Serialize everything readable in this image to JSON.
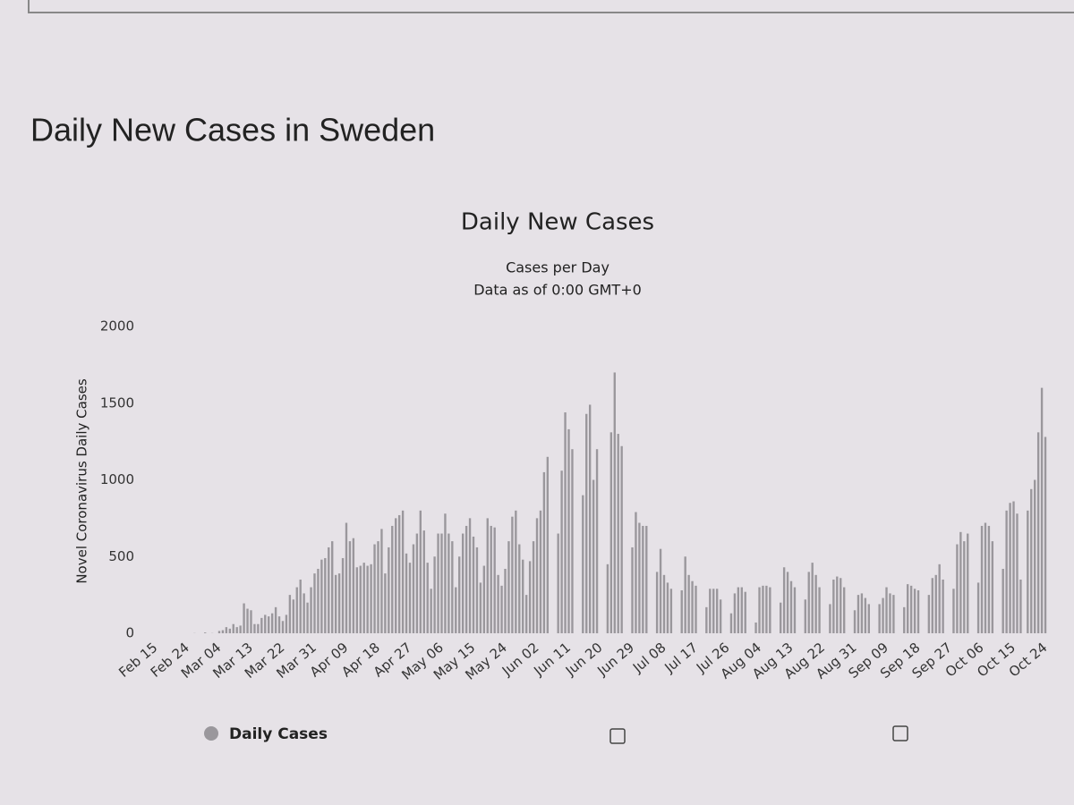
{
  "heading": "Daily New Cases in Sweden",
  "chart_data": {
    "type": "bar",
    "title": "Daily New Cases",
    "subtitle": [
      "Cases per Day",
      "Data as of 0:00 GMT+0"
    ],
    "y_label": "Novel Coronavirus Daily Cases",
    "series": [
      {
        "name": "Daily Cases",
        "color": "#9a979c"
      }
    ],
    "legend": "bottom-left",
    "grid": false,
    "ylim": [
      0,
      2000
    ],
    "yticks": [
      0,
      500,
      1000,
      1500,
      2000
    ],
    "categories": [
      "Feb 15",
      null,
      null,
      null,
      null,
      null,
      null,
      null,
      null,
      "Feb 24",
      null,
      null,
      null,
      null,
      null,
      null,
      null,
      null,
      "Mar 04",
      null,
      null,
      null,
      null,
      null,
      null,
      null,
      null,
      "Mar 13",
      null,
      null,
      null,
      null,
      null,
      null,
      null,
      null,
      "Mar 22",
      null,
      null,
      null,
      null,
      null,
      null,
      null,
      null,
      "Mar 31",
      null,
      null,
      null,
      null,
      null,
      null,
      null,
      null,
      "Apr 09",
      null,
      null,
      null,
      null,
      null,
      null,
      null,
      null,
      "Apr 18",
      null,
      null,
      null,
      null,
      null,
      null,
      null,
      null,
      "Apr 27",
      null,
      null,
      null,
      null,
      null,
      null,
      null,
      null,
      "May 06",
      null,
      null,
      null,
      null,
      null,
      null,
      null,
      null,
      "May 15",
      null,
      null,
      null,
      null,
      null,
      null,
      null,
      null,
      "May 24",
      null,
      null,
      null,
      null,
      null,
      null,
      null,
      null,
      "Jun 02",
      null,
      null,
      null,
      null,
      null,
      null,
      null,
      null,
      "Jun 11",
      null,
      null,
      null,
      null,
      null,
      null,
      null,
      null,
      "Jun 20",
      null,
      null,
      null,
      null,
      null,
      null,
      null,
      null,
      "Jun 29",
      null,
      null,
      null,
      null,
      null,
      null,
      null,
      null,
      "Jul 08",
      null,
      null,
      null,
      null,
      null,
      null,
      null,
      null,
      "Jul 17",
      null,
      null,
      null,
      null,
      null,
      null,
      null,
      null,
      "Jul 26",
      null,
      null,
      null,
      null,
      null,
      null,
      null,
      null,
      "Aug 04",
      null,
      null,
      null,
      null,
      null,
      null,
      null,
      null,
      "Aug 13",
      null,
      null,
      null,
      null,
      null,
      null,
      null,
      null,
      "Aug 22",
      null,
      null,
      null,
      null,
      null,
      null,
      null,
      null,
      "Aug 31",
      null,
      null,
      null,
      null,
      null,
      null,
      null,
      null,
      "Sep 09",
      null,
      null,
      null,
      null,
      null,
      null,
      null,
      null,
      "Sep 18",
      null,
      null,
      null,
      null,
      null,
      null,
      null,
      null,
      "Sep 27",
      null,
      null,
      null,
      null,
      null,
      null,
      null,
      null,
      "Oct 06",
      null,
      null,
      null,
      null,
      null,
      null,
      null,
      null,
      "Oct 15",
      null,
      null,
      null,
      null,
      null,
      null,
      null,
      null,
      "Oct 24"
    ],
    "values": [
      0,
      0,
      0,
      0,
      0,
      0,
      0,
      0,
      0,
      0,
      0,
      1,
      0,
      0,
      5,
      0,
      1,
      0,
      15,
      20,
      40,
      30,
      60,
      40,
      50,
      195,
      160,
      150,
      60,
      60,
      100,
      120,
      110,
      130,
      170,
      110,
      80,
      120,
      250,
      220,
      300,
      350,
      260,
      200,
      300,
      390,
      420,
      480,
      490,
      560,
      600,
      380,
      390,
      490,
      720,
      600,
      620,
      430,
      440,
      460,
      440,
      450,
      580,
      600,
      680,
      390,
      560,
      700,
      750,
      770,
      800,
      520,
      460,
      580,
      650,
      800,
      670,
      460,
      290,
      500,
      650,
      650,
      780,
      650,
      600,
      300,
      500,
      650,
      700,
      750,
      630,
      560,
      330,
      440,
      750,
      700,
      690,
      380,
      310,
      420,
      600,
      760,
      800,
      580,
      480,
      250,
      470,
      600,
      750,
      800,
      1050,
      1150,
      0,
      0,
      650,
      1060,
      1440,
      1330,
      1200,
      0,
      0,
      900,
      1430,
      1490,
      1000,
      1200,
      0,
      0,
      450,
      1310,
      1700,
      1300,
      1220,
      0,
      0,
      560,
      790,
      720,
      700,
      700,
      0,
      0,
      400,
      550,
      380,
      330,
      290,
      0,
      0,
      280,
      500,
      380,
      340,
      310,
      0,
      0,
      170,
      290,
      290,
      290,
      220,
      0,
      0,
      130,
      260,
      300,
      300,
      270,
      0,
      0,
      70,
      300,
      310,
      310,
      300,
      0,
      0,
      200,
      430,
      400,
      340,
      300,
      0,
      0,
      220,
      400,
      460,
      380,
      300,
      0,
      0,
      190,
      350,
      370,
      360,
      300,
      0,
      0,
      150,
      250,
      260,
      230,
      190,
      0,
      0,
      190,
      230,
      300,
      260,
      250,
      0,
      0,
      170,
      320,
      310,
      290,
      280,
      0,
      0,
      250,
      360,
      380,
      450,
      350,
      0,
      0,
      290,
      580,
      660,
      600,
      650,
      0,
      0,
      330,
      700,
      720,
      700,
      600,
      0,
      0,
      420,
      800,
      850,
      860,
      780,
      350,
      0,
      800,
      940,
      1000,
      1310,
      1600,
      1280
    ]
  }
}
